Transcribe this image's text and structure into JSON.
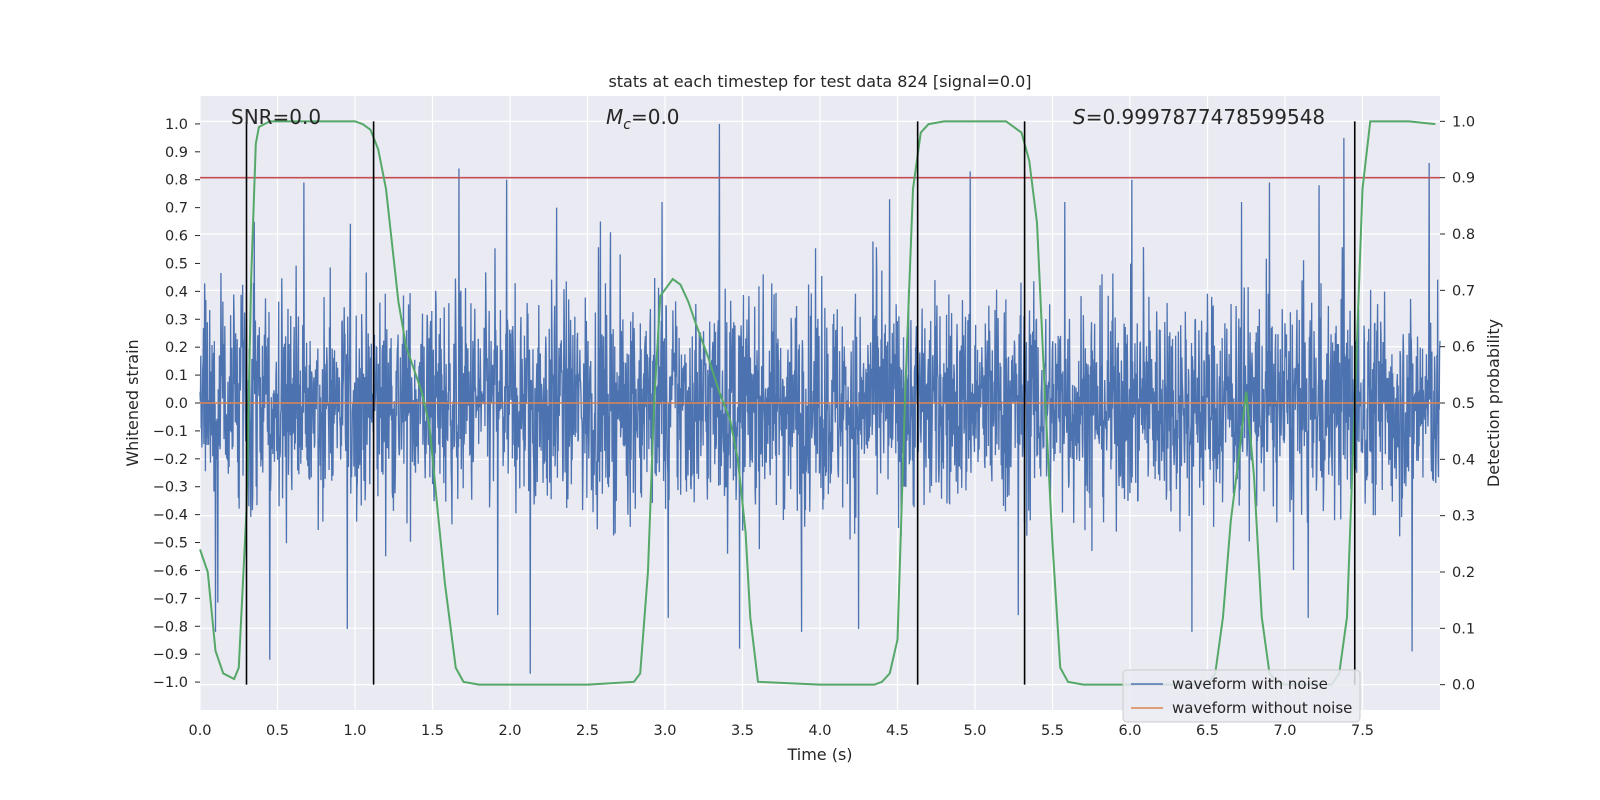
{
  "chart_data": {
    "type": "line",
    "title": "stats at each timestep for test data 824 [signal=0.0]",
    "xlabel": "Time (s)",
    "ylabel": "Whitened strain",
    "y2label": "Detection probability",
    "xlim": [
      0.0,
      8.0
    ],
    "ylim": [
      -1.1,
      1.1
    ],
    "y2lim": [
      -0.045,
      1.045
    ],
    "xticks": [
      0.0,
      0.5,
      1.0,
      1.5,
      2.0,
      2.5,
      3.0,
      3.5,
      4.0,
      4.5,
      5.0,
      5.5,
      6.0,
      6.5,
      7.0,
      7.5
    ],
    "xtick_labels": [
      "0.0",
      "0.5",
      "1.0",
      "1.5",
      "2.0",
      "2.5",
      "3.0",
      "3.5",
      "4.0",
      "4.5",
      "5.0",
      "5.5",
      "6.0",
      "6.5",
      "7.0",
      "7.5"
    ],
    "yticks": [
      -1.0,
      -0.9,
      -0.8,
      -0.7,
      -0.6,
      -0.5,
      -0.4,
      -0.3,
      -0.2,
      -0.1,
      0.0,
      0.1,
      0.2,
      0.3,
      0.4,
      0.5,
      0.6,
      0.7,
      0.8,
      0.9,
      1.0
    ],
    "ytick_labels": [
      "−1.0",
      "−0.9",
      "−0.8",
      "−0.7",
      "−0.6",
      "−0.5",
      "−0.4",
      "−0.3",
      "−0.2",
      "−0.1",
      "0.0",
      "0.1",
      "0.2",
      "0.3",
      "0.4",
      "0.5",
      "0.6",
      "0.7",
      "0.8",
      "0.9",
      "1.0"
    ],
    "y2ticks": [
      0.0,
      0.1,
      0.2,
      0.3,
      0.4,
      0.5,
      0.6,
      0.7,
      0.8,
      0.9,
      1.0
    ],
    "y2tick_labels": [
      "0.0",
      "0.1",
      "0.2",
      "0.3",
      "0.4",
      "0.5",
      "0.6",
      "0.7",
      "0.8",
      "0.9",
      "1.0"
    ],
    "annotations": {
      "snr": "SNR=0.0",
      "mc_symbol": "M",
      "mc_sub": "c",
      "mc_value": "=0.0",
      "s_symbol": "S",
      "s_value": "=0.9997877478599548"
    },
    "threshold": {
      "value": 0.9,
      "axis": "y2",
      "color": "#c44e52"
    },
    "vertical_lines": [
      0.3,
      1.12,
      4.63,
      5.32,
      7.45
    ],
    "series": [
      {
        "name": "waveform with noise",
        "color": "#4c72b0",
        "sample_rate_hz": 2048,
        "envelope_typical": [
          -0.45,
          0.45
        ],
        "peak_range": [
          -0.98,
          1.0
        ],
        "peaks": [
          {
            "x": 3.35,
            "y": 1.0
          },
          {
            "x": 7.38,
            "y": 0.95
          },
          {
            "x": 4.97,
            "y": 0.83
          },
          {
            "x": 1.67,
            "y": 0.84
          },
          {
            "x": 7.93,
            "y": 0.86
          },
          {
            "x": 2.13,
            "y": -0.97
          },
          {
            "x": 0.45,
            "y": -0.92
          },
          {
            "x": 3.48,
            "y": -0.88
          },
          {
            "x": 7.82,
            "y": -0.89
          },
          {
            "x": 0.1,
            "y": -0.82
          },
          {
            "x": 3.88,
            "y": -0.82
          },
          {
            "x": 4.25,
            "y": -0.81
          },
          {
            "x": 0.95,
            "y": -0.81
          },
          {
            "x": 6.4,
            "y": -0.82
          },
          {
            "x": 3.02,
            "y": -0.77
          },
          {
            "x": 1.92,
            "y": -0.76
          },
          {
            "x": 5.28,
            "y": -0.76
          },
          {
            "x": 7.15,
            "y": -0.77
          },
          {
            "x": 0.67,
            "y": 0.79
          },
          {
            "x": 2.98,
            "y": 0.72
          },
          {
            "x": 5.58,
            "y": 0.72
          },
          {
            "x": 6.72,
            "y": 0.72
          },
          {
            "x": 7.22,
            "y": 0.78
          },
          {
            "x": 4.45,
            "y": 0.73
          },
          {
            "x": 0.35,
            "y": 0.65
          },
          {
            "x": 2.3,
            "y": 0.7
          },
          {
            "x": 6.9,
            "y": 0.79
          }
        ]
      },
      {
        "name": "waveform without noise",
        "color": "#dd8452",
        "constant": 0.0
      },
      {
        "name": "detection probability",
        "axis": "y2",
        "color": "#55a868",
        "x": [
          0.0,
          0.05,
          0.1,
          0.15,
          0.22,
          0.25,
          0.3,
          0.33,
          0.36,
          0.38,
          0.45,
          0.5,
          0.6,
          0.8,
          1.0,
          1.05,
          1.1,
          1.15,
          1.2,
          1.28,
          1.33,
          1.38,
          1.43,
          1.48,
          1.54,
          1.58,
          1.65,
          1.7,
          1.8,
          2.0,
          2.5,
          2.8,
          2.84,
          2.89,
          2.93,
          2.97,
          3.05,
          3.1,
          3.15,
          3.2,
          3.28,
          3.35,
          3.42,
          3.47,
          3.52,
          3.55,
          3.6,
          4.0,
          4.35,
          4.4,
          4.45,
          4.5,
          4.55,
          4.6,
          4.65,
          4.7,
          4.8,
          5.0,
          5.2,
          5.25,
          5.3,
          5.35,
          5.4,
          5.45,
          5.5,
          5.55,
          5.6,
          5.7,
          6.0,
          6.5,
          6.55,
          6.6,
          6.65,
          6.7,
          6.75,
          6.8,
          6.85,
          6.9,
          6.95,
          7.0,
          7.3,
          7.35,
          7.4,
          7.45,
          7.5,
          7.55,
          7.6,
          7.8,
          7.97
        ],
        "y": [
          0.24,
          0.2,
          0.06,
          0.02,
          0.01,
          0.03,
          0.31,
          0.72,
          0.96,
          0.99,
          1.0,
          1.0,
          1.0,
          1.0,
          1.0,
          0.995,
          0.985,
          0.95,
          0.88,
          0.68,
          0.6,
          0.56,
          0.52,
          0.46,
          0.29,
          0.18,
          0.03,
          0.005,
          0.0,
          0.0,
          0.0,
          0.005,
          0.02,
          0.2,
          0.5,
          0.69,
          0.72,
          0.71,
          0.68,
          0.64,
          0.58,
          0.52,
          0.47,
          0.4,
          0.27,
          0.12,
          0.005,
          0.0,
          0.0,
          0.005,
          0.02,
          0.08,
          0.52,
          0.88,
          0.98,
          0.995,
          1.0,
          1.0,
          1.0,
          0.99,
          0.98,
          0.93,
          0.82,
          0.52,
          0.25,
          0.03,
          0.005,
          0.0,
          0.0,
          0.0,
          0.02,
          0.12,
          0.29,
          0.4,
          0.52,
          0.37,
          0.12,
          0.02,
          0.005,
          0.0,
          0.0,
          0.02,
          0.12,
          0.5,
          0.88,
          1.0,
          1.0,
          1.0,
          0.995
        ]
      }
    ],
    "legend": {
      "position": "lower right",
      "entries": [
        "waveform with noise",
        "waveform without noise"
      ]
    },
    "colors": {
      "background": "#eaeaf2",
      "grid": "#ffffff",
      "text": "#262626",
      "vline": "#000000"
    }
  }
}
